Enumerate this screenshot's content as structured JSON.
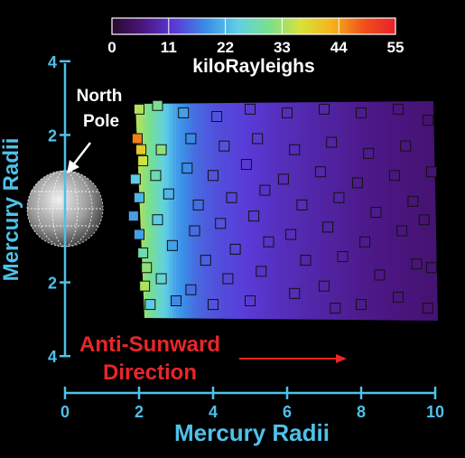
{
  "chart_data": {
    "type": "heatmap",
    "colorbar": {
      "label": "kiloRayleighs",
      "ticks": [
        "0",
        "11",
        "22",
        "33",
        "44",
        "55"
      ],
      "range": [
        0,
        55
      ],
      "colormap": [
        "#2a0a2e",
        "#4b1580",
        "#5a3bd8",
        "#3a8de8",
        "#5fd0e6",
        "#7ae08a",
        "#d8e23a",
        "#f6b21a",
        "#f0501a",
        "#e8202a"
      ]
    },
    "xaxis": {
      "label": "Mercury Radii",
      "ticks": [
        "0",
        "2",
        "4",
        "6",
        "8",
        "10"
      ],
      "range": [
        0,
        10
      ]
    },
    "yaxis": {
      "label": "Mercury Radii",
      "ticks": [
        "4",
        "2",
        "2",
        "4"
      ],
      "range": [
        -4,
        4
      ]
    },
    "annotations": {
      "north_pole_line1": "North",
      "north_pole_line2": "Pole",
      "direction_line1": "Anti-Sunward",
      "direction_line2": "Direction"
    },
    "colors": {
      "axis": "#4fc1e9",
      "annotation_red": "#e8262a",
      "text": "#ffffff"
    },
    "intensity_profile": {
      "x": [
        2.0,
        2.3,
        2.6,
        3.0,
        3.5,
        4.0,
        5.0,
        6.0,
        7.0,
        8.0,
        9.0,
        10.0
      ],
      "value": [
        34,
        30,
        26,
        20,
        16,
        14,
        12,
        10,
        8.5,
        7,
        6,
        5
      ]
    },
    "observations": [
      {
        "x": 2.0,
        "y": 2.7,
        "v": 34
      },
      {
        "x": 1.95,
        "y": 1.9,
        "v": 46
      },
      {
        "x": 2.05,
        "y": 1.6,
        "v": 40
      },
      {
        "x": 2.1,
        "y": 1.3,
        "v": 36
      },
      {
        "x": 1.9,
        "y": 0.8,
        "v": 24
      },
      {
        "x": 2.0,
        "y": 0.3,
        "v": 22
      },
      {
        "x": 1.85,
        "y": -0.2,
        "v": 20
      },
      {
        "x": 2.0,
        "y": -0.7,
        "v": 20
      },
      {
        "x": 2.1,
        "y": -1.2,
        "v": 28
      },
      {
        "x": 2.2,
        "y": -1.6,
        "v": 32
      },
      {
        "x": 2.15,
        "y": -2.1,
        "v": 34
      },
      {
        "x": 2.3,
        "y": -2.6,
        "v": 24
      },
      {
        "x": 2.5,
        "y": 2.8,
        "v": 30
      },
      {
        "x": 2.6,
        "y": 1.6,
        "v": 32
      },
      {
        "x": 2.45,
        "y": 0.9,
        "v": 28
      },
      {
        "x": 2.8,
        "y": 0.4,
        "v": 22
      },
      {
        "x": 2.5,
        "y": -0.3,
        "v": 24
      },
      {
        "x": 2.9,
        "y": -1.0,
        "v": 20
      },
      {
        "x": 2.6,
        "y": -1.9,
        "v": 26
      },
      {
        "x": 3.0,
        "y": -2.5,
        "v": 18
      },
      {
        "x": 3.2,
        "y": 2.6,
        "v": 20
      },
      {
        "x": 3.4,
        "y": 1.9,
        "v": 18
      },
      {
        "x": 3.3,
        "y": 1.1,
        "v": 18
      },
      {
        "x": 3.6,
        "y": 0.1,
        "v": 16
      },
      {
        "x": 3.5,
        "y": -0.6,
        "v": 16
      },
      {
        "x": 3.8,
        "y": -1.4,
        "v": 15
      },
      {
        "x": 3.4,
        "y": -2.2,
        "v": 16
      },
      {
        "x": 4.1,
        "y": 2.5,
        "v": 14
      },
      {
        "x": 4.3,
        "y": 1.7,
        "v": 14
      },
      {
        "x": 4.0,
        "y": 0.9,
        "v": 14
      },
      {
        "x": 4.5,
        "y": 0.3,
        "v": 13
      },
      {
        "x": 4.2,
        "y": -0.4,
        "v": 14
      },
      {
        "x": 4.6,
        "y": -1.1,
        "v": 13
      },
      {
        "x": 4.4,
        "y": -1.9,
        "v": 13
      },
      {
        "x": 4.0,
        "y": -2.6,
        "v": 14
      },
      {
        "x": 5.0,
        "y": 2.7,
        "v": 12
      },
      {
        "x": 5.2,
        "y": 1.9,
        "v": 12
      },
      {
        "x": 4.9,
        "y": 1.2,
        "v": 12
      },
      {
        "x": 5.4,
        "y": 0.5,
        "v": 11
      },
      {
        "x": 5.1,
        "y": -0.2,
        "v": 12
      },
      {
        "x": 5.5,
        "y": -0.9,
        "v": 11
      },
      {
        "x": 5.3,
        "y": -1.7,
        "v": 11
      },
      {
        "x": 5.0,
        "y": -2.5,
        "v": 12
      },
      {
        "x": 6.0,
        "y": 2.6,
        "v": 10
      },
      {
        "x": 6.2,
        "y": 1.6,
        "v": 10
      },
      {
        "x": 5.9,
        "y": 0.8,
        "v": 10
      },
      {
        "x": 6.4,
        "y": 0.1,
        "v": 10
      },
      {
        "x": 6.1,
        "y": -0.7,
        "v": 10
      },
      {
        "x": 6.5,
        "y": -1.4,
        "v": 9
      },
      {
        "x": 6.2,
        "y": -2.3,
        "v": 10
      },
      {
        "x": 7.0,
        "y": 2.7,
        "v": 9
      },
      {
        "x": 7.2,
        "y": 1.8,
        "v": 8.5
      },
      {
        "x": 6.9,
        "y": 1.0,
        "v": 9
      },
      {
        "x": 7.4,
        "y": 0.3,
        "v": 8.5
      },
      {
        "x": 7.1,
        "y": -0.5,
        "v": 8.5
      },
      {
        "x": 7.5,
        "y": -1.3,
        "v": 8
      },
      {
        "x": 7.0,
        "y": -2.1,
        "v": 8.5
      },
      {
        "x": 7.3,
        "y": -2.7,
        "v": 8
      },
      {
        "x": 8.0,
        "y": 2.6,
        "v": 7
      },
      {
        "x": 8.2,
        "y": 1.5,
        "v": 7
      },
      {
        "x": 7.9,
        "y": 0.7,
        "v": 7
      },
      {
        "x": 8.4,
        "y": -0.1,
        "v": 7
      },
      {
        "x": 8.1,
        "y": -0.9,
        "v": 7
      },
      {
        "x": 8.5,
        "y": -1.8,
        "v": 6.5
      },
      {
        "x": 8.0,
        "y": -2.6,
        "v": 7
      },
      {
        "x": 9.0,
        "y": 2.7,
        "v": 6
      },
      {
        "x": 9.2,
        "y": 1.7,
        "v": 6
      },
      {
        "x": 8.9,
        "y": 0.9,
        "v": 6
      },
      {
        "x": 9.4,
        "y": 0.2,
        "v": 5.5
      },
      {
        "x": 9.1,
        "y": -0.6,
        "v": 6
      },
      {
        "x": 9.5,
        "y": -1.5,
        "v": 5.5
      },
      {
        "x": 9.0,
        "y": -2.4,
        "v": 6
      },
      {
        "x": 9.8,
        "y": 2.4,
        "v": 5
      },
      {
        "x": 9.9,
        "y": 1.0,
        "v": 5
      },
      {
        "x": 9.7,
        "y": -0.3,
        "v": 5
      },
      {
        "x": 9.9,
        "y": -1.6,
        "v": 5
      },
      {
        "x": 9.8,
        "y": -2.7,
        "v": 5
      }
    ]
  }
}
